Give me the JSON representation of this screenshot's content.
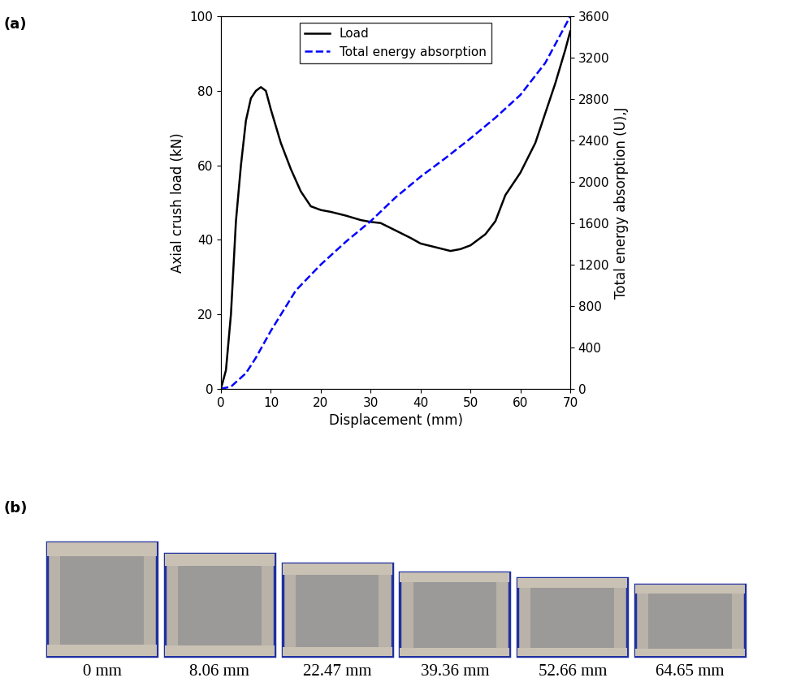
{
  "chart_data": {
    "type": "line",
    "x_label": "Displacement (mm)",
    "y_label": "Axial crush load (kN)",
    "y2_label": "Total energy absorption (U),J",
    "xlim": [
      0,
      70
    ],
    "xticks": [
      0,
      10,
      20,
      30,
      40,
      50,
      60,
      70
    ],
    "ylim": [
      0,
      100
    ],
    "yticks": [
      0,
      20,
      40,
      60,
      80,
      100
    ],
    "y2lim": [
      0,
      3600
    ],
    "y2ticks": [
      0,
      400,
      800,
      1200,
      1600,
      2000,
      2400,
      2800,
      3200,
      3600
    ],
    "legend": "upper center",
    "grid": false,
    "series": [
      {
        "name": "Load",
        "color": "#000000",
        "line_style": "solid",
        "axis": "y",
        "x": [
          0,
          1,
          2,
          3,
          4,
          5,
          6,
          7,
          8,
          9,
          10,
          12,
          14,
          16,
          18,
          20,
          22,
          25,
          28,
          30,
          32,
          35,
          38,
          40,
          43,
          46,
          48,
          50,
          53,
          55,
          57,
          60,
          63,
          65,
          67,
          69,
          70
        ],
        "values": [
          0,
          5,
          20,
          45,
          60,
          72,
          78,
          80,
          81,
          80,
          75,
          66,
          59,
          53,
          49,
          48,
          47.5,
          46.5,
          45.3,
          44.8,
          44.5,
          42.5,
          40.5,
          39,
          38,
          37,
          37.5,
          38.5,
          41.5,
          45,
          52,
          58,
          66,
          74,
          82,
          91,
          96
        ]
      },
      {
        "name": "Total energy absorption",
        "color": "#0000ff",
        "line_style": "dashed",
        "axis": "y2",
        "x": [
          0,
          2,
          5,
          7,
          10,
          15,
          20,
          25,
          30,
          35,
          40,
          45,
          50,
          55,
          60,
          65,
          70
        ],
        "values": [
          0,
          20,
          150,
          300,
          560,
          950,
          1200,
          1420,
          1620,
          1850,
          2050,
          2230,
          2420,
          2620,
          2840,
          3150,
          3600
        ]
      }
    ]
  },
  "figure": {
    "panel_labels": [
      "(a)",
      "(b)"
    ],
    "photo_captions": [
      "0 mm",
      "8.06 mm",
      "22.47 mm",
      "39.36 mm",
      "52.66 mm",
      "64.65 mm"
    ]
  }
}
